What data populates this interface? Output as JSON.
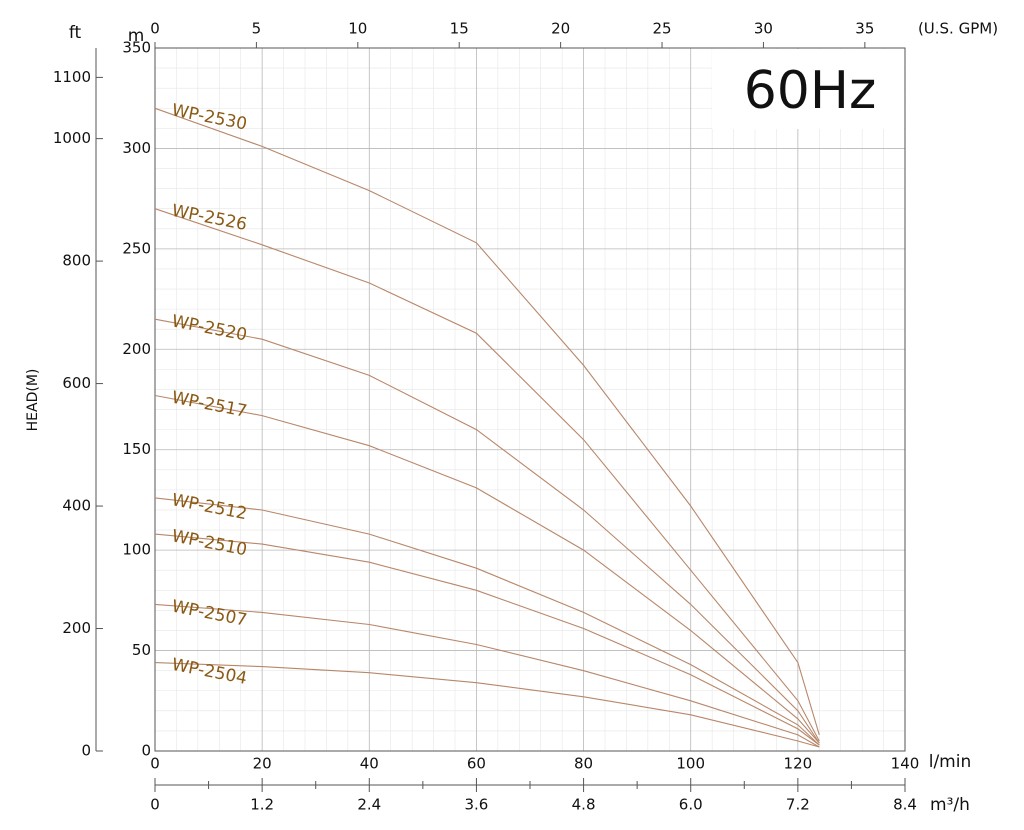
{
  "chart_data": {
    "type": "line",
    "title": "60Hz",
    "y_label": "HEAD(M)",
    "y_unit": "m",
    "y2_unit": "ft",
    "x_label": "l/min",
    "x2_label": "(U.S. GPM)",
    "x3_label": "m³/h",
    "x": [
      0,
      20,
      40,
      60,
      80,
      100,
      120,
      124
    ],
    "xlim": [
      0,
      140
    ],
    "xticks": [
      0,
      20,
      40,
      60,
      80,
      100,
      120,
      140
    ],
    "x2lim": [
      0,
      36.98
    ],
    "x2ticks": [
      0,
      5,
      10,
      15,
      20,
      25,
      30,
      35
    ],
    "x3lim": [
      0,
      8.4
    ],
    "x3ticks": [
      0,
      1.2,
      2.4,
      3.6,
      4.8,
      {
        "value": 6,
        "label": "6.0"
      },
      7.2,
      8.4
    ],
    "ylim": [
      0,
      350
    ],
    "yticks": [
      0,
      50,
      100,
      150,
      200,
      250,
      300,
      350
    ],
    "y2lim": [
      0,
      1148
    ],
    "y2ticks": [
      0,
      200,
      400,
      600,
      800,
      1000,
      1100
    ],
    "grid": true,
    "line_color": "#b8876a",
    "label_color": "#8a5a14",
    "series": [
      {
        "name": "WP-2530",
        "values": [
          320,
          301,
          279,
          253,
          192,
          122,
          44,
          8
        ]
      },
      {
        "name": "WP-2526",
        "values": [
          270,
          252,
          233,
          208,
          155,
          90,
          25,
          5
        ]
      },
      {
        "name": "WP-2520",
        "values": [
          215,
          205,
          187,
          160,
          120,
          73,
          20,
          4
        ]
      },
      {
        "name": "WP-2517",
        "values": [
          177,
          167,
          152,
          131,
          100,
          60,
          16,
          4
        ]
      },
      {
        "name": "WP-2512",
        "values": [
          126,
          120,
          108,
          91,
          69,
          43,
          13,
          3
        ]
      },
      {
        "name": "WP-2510",
        "values": [
          108,
          103,
          94,
          80,
          61,
          38,
          11,
          3
        ]
      },
      {
        "name": "WP-2507",
        "values": [
          73,
          69,
          63,
          53,
          40,
          25,
          8,
          2
        ]
      },
      {
        "name": "WP-2504",
        "values": [
          44,
          42,
          39,
          34,
          27,
          18,
          5,
          2
        ]
      }
    ]
  }
}
